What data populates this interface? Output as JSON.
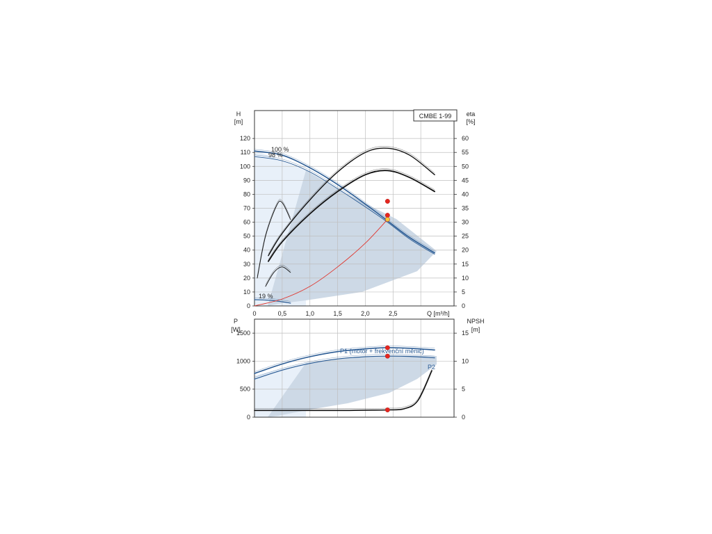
{
  "chart_data": [
    {
      "type": "line",
      "title": "CMBE 1-99",
      "y_left_label": "H",
      "y_left_unit": "[m]",
      "y_right_label": "eta",
      "y_right_unit": "[%]",
      "xlabel": "Q [m³/h]",
      "xlim": [
        0,
        3.6
      ],
      "ylim_left": [
        0,
        140
      ],
      "ylim_right": [
        0,
        70
      ],
      "x_ticks": [
        "0",
        "0,5",
        "1,0",
        "1,5",
        "2,0",
        "2,5"
      ],
      "y_left_ticks": [
        "0",
        "10",
        "20",
        "30",
        "40",
        "50",
        "60",
        "70",
        "80",
        "90",
        "100",
        "110",
        "120"
      ],
      "y_right_ticks": [
        "0",
        "5",
        "10",
        "15",
        "20",
        "25",
        "30",
        "35",
        "40",
        "45",
        "50",
        "55",
        "60"
      ],
      "curve_labels": [
        "100 %",
        "98 %",
        "19 %"
      ],
      "colors": {
        "head_curve": "#2a5b94",
        "area_dark": "#cdd9e6",
        "area_light": "#e8f0f9",
        "system_curve": "#e0342c",
        "duty_point": "#e5261f",
        "duty_point_highlight": "#f5c73a"
      },
      "series": [
        {
          "name": "100 %",
          "x": [
            0,
            0.5,
            1.0,
            1.5,
            2.0,
            2.4,
            2.8,
            3.25
          ],
          "y": [
            111,
            108,
            99,
            87,
            73,
            61,
            49,
            38
          ]
        },
        {
          "name": "98 %",
          "x": [
            0,
            0.5,
            1.0,
            1.5,
            2.0,
            2.4,
            2.8,
            3.25
          ],
          "y": [
            107,
            104,
            96,
            84,
            71,
            60,
            48,
            37
          ]
        },
        {
          "name": "19 %",
          "x": [
            0,
            0.3,
            0.5,
            0.65
          ],
          "y": [
            4.5,
            4,
            3,
            2
          ]
        },
        {
          "x": [
            0.25,
            0.5,
            1.0,
            1.5,
            2.0,
            2.4,
            2.8,
            3.25
          ],
          "y": [
            18,
            26,
            38,
            48,
            55,
            56.5,
            54,
            47
          ],
          "axis": "right"
        },
        {
          "x": [
            0.25,
            0.5,
            1.0,
            1.5,
            2.0,
            2.4,
            2.8,
            3.25
          ],
          "y": [
            16,
            23,
            33,
            41,
            47,
            48.5,
            46,
            41
          ],
          "axis": "right"
        },
        {
          "x": [
            0.05,
            0.2,
            0.4,
            0.5,
            0.65
          ],
          "y": [
            10,
            25,
            36,
            37,
            31
          ],
          "axis": "right"
        },
        {
          "x": [
            0.2,
            0.35,
            0.5,
            0.65
          ],
          "y": [
            7,
            12,
            14,
            12
          ],
          "axis": "right"
        },
        {
          "x": [
            0,
            0.5,
            1.0,
            1.5,
            2.0,
            2.4
          ],
          "y": [
            0,
            5,
            14,
            28,
            45,
            62
          ]
        }
      ],
      "points": [
        {
          "x": 2.4,
          "y": 75
        },
        {
          "x": 2.4,
          "y": 65
        },
        {
          "x": 2.4,
          "y": 62
        }
      ]
    },
    {
      "type": "line",
      "y_left_label": "P",
      "y_left_unit": "[W]",
      "y_right_label": "NPSH",
      "y_right_unit": "[m]",
      "xlim": [
        0,
        3.6
      ],
      "ylim_left": [
        0,
        1750
      ],
      "ylim_right": [
        0,
        17.5
      ],
      "y_left_ticks": [
        "0",
        "500",
        "1000",
        "1500"
      ],
      "y_right_ticks": [
        "0",
        "5",
        "10",
        "15"
      ],
      "series": [
        {
          "name": "P1 (motor + frekvenční měnič)",
          "x": [
            0,
            0.5,
            1.0,
            1.5,
            2.0,
            2.4,
            2.8,
            3.25
          ],
          "y": [
            780,
            950,
            1080,
            1170,
            1220,
            1240,
            1230,
            1200
          ]
        },
        {
          "name": "P2",
          "x": [
            0,
            0.5,
            1.0,
            1.5,
            2.0,
            2.4,
            2.8,
            3.25
          ],
          "y": [
            680,
            840,
            960,
            1040,
            1080,
            1090,
            1085,
            1060
          ]
        },
        {
          "x": [
            0,
            0.5,
            1.0,
            1.5,
            2.0,
            2.4,
            2.7,
            2.95,
            3.2
          ],
          "y": [
            1.2,
            1.2,
            1.2,
            1.2,
            1.25,
            1.3,
            1.5,
            3.0,
            8.3
          ],
          "axis": "right"
        }
      ],
      "points": [
        {
          "x": 2.4,
          "y": 1240
        },
        {
          "x": 2.4,
          "y": 1090
        },
        {
          "x": 2.4,
          "y": 130
        }
      ]
    }
  ]
}
